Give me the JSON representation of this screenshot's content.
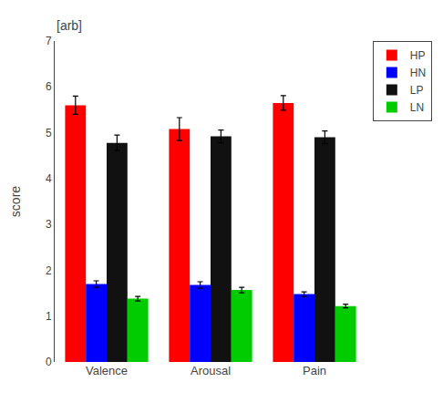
{
  "chart_data": {
    "type": "bar",
    "ylabel": "score",
    "annotations": [
      "[arb]"
    ],
    "categories": [
      "Valence",
      "Arousal",
      "Pain"
    ],
    "series": [
      {
        "name": "HP",
        "color": "#ff0000",
        "values": [
          5.6,
          5.08,
          5.65
        ],
        "errors": [
          0.2,
          0.25,
          0.16
        ]
      },
      {
        "name": "HN",
        "color": "#0000ff",
        "values": [
          1.7,
          1.68,
          1.48
        ],
        "errors": [
          0.07,
          0.07,
          0.05
        ]
      },
      {
        "name": "LP",
        "color": "#111111",
        "values": [
          4.78,
          4.92,
          4.9
        ],
        "errors": [
          0.17,
          0.14,
          0.14
        ]
      },
      {
        "name": "LN",
        "color": "#00cc00",
        "values": [
          1.38,
          1.57,
          1.22
        ],
        "errors": [
          0.05,
          0.06,
          0.04
        ]
      }
    ],
    "ylim": [
      0,
      7
    ],
    "yticks": [
      0,
      1,
      2,
      3,
      4,
      5,
      6,
      7
    ],
    "grid": false,
    "legend": "right"
  }
}
